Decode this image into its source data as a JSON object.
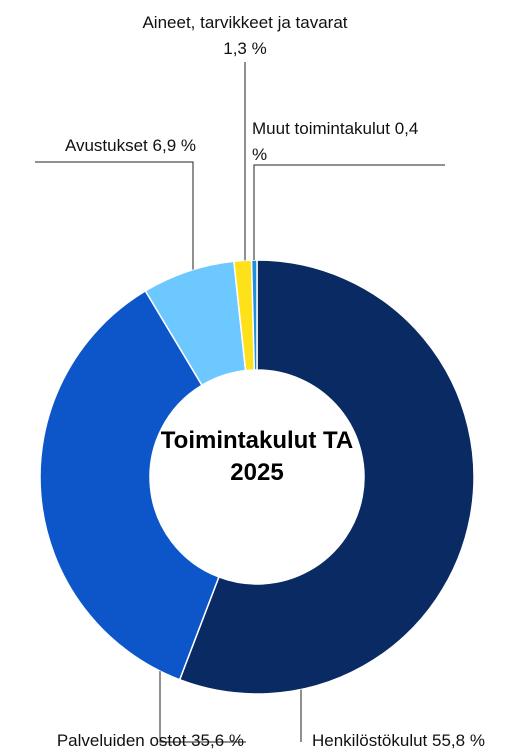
{
  "chart_data": {
    "type": "donut",
    "title": "Toimintakulut TA 2025",
    "categories": [
      "Henkilöstökulut",
      "Palveluiden ostot",
      "Avustukset",
      "Aineet, tarvikkeet ja tavarat",
      "Muut toimintakulut"
    ],
    "values": [
      55.8,
      35.6,
      6.9,
      1.3,
      0.4
    ],
    "value_labels": [
      "55,8 %",
      "35,6 %",
      "6,9 %",
      "1,3 %",
      "0,4 %"
    ],
    "colors": [
      "#0a2a63",
      "#0d56c9",
      "#6cc8ff",
      "#ffe11a",
      "#1e8fd8"
    ]
  }
}
